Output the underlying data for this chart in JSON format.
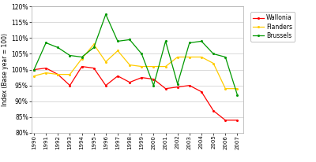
{
  "years": [
    1990,
    1991,
    1992,
    1993,
    1994,
    1995,
    1996,
    1997,
    1998,
    1999,
    2000,
    2001,
    2002,
    2003,
    2004,
    2005,
    2006,
    2007
  ],
  "wallonia": [
    100,
    100.5,
    98.5,
    95,
    101,
    100.5,
    95,
    98,
    96,
    97.5,
    97,
    94,
    94.5,
    95,
    93,
    87,
    84,
    84
  ],
  "flanders": [
    98,
    99,
    98.5,
    98.5,
    103.5,
    108,
    102.5,
    106,
    101.5,
    101,
    101,
    101,
    104,
    104,
    104,
    102,
    94,
    94
  ],
  "brussels": [
    100,
    108.5,
    107,
    104.5,
    104,
    107,
    117.5,
    109,
    109.5,
    105,
    95,
    109,
    95.5,
    108.5,
    109,
    105,
    104,
    92
  ],
  "wallonia_color": "#ff0000",
  "flanders_color": "#ffcc00",
  "brussels_color": "#009900",
  "ylabel": "Index (Base year = 100)",
  "ylim": [
    80,
    120
  ],
  "yticks": [
    80,
    85,
    90,
    95,
    100,
    105,
    110,
    115,
    120
  ],
  "background_color": "#ffffff",
  "grid_color": "#cccccc",
  "legend_labels": [
    "Wallonia",
    "Flanders",
    "Brussels"
  ]
}
